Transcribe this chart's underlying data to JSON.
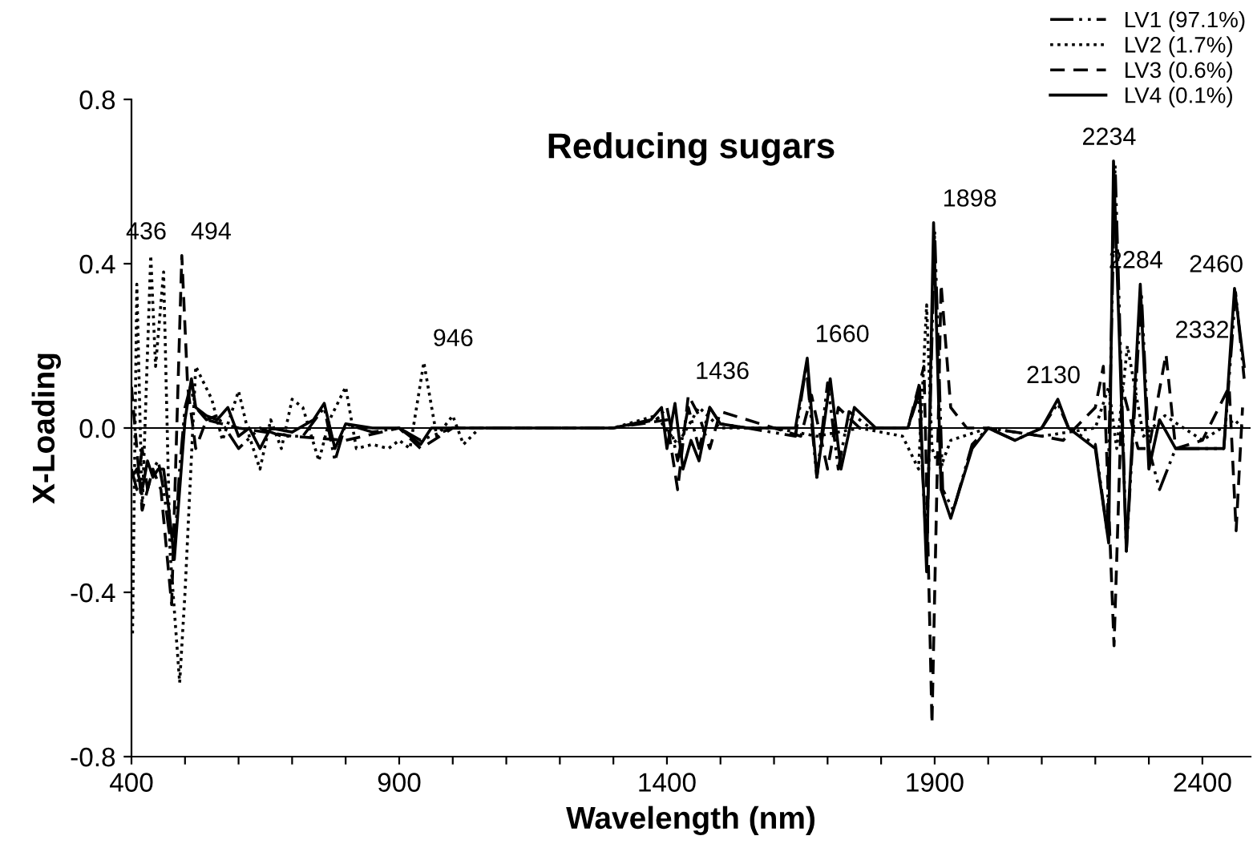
{
  "chart_data": {
    "type": "line",
    "title": "Reducing sugars",
    "xlabel": "Wavelength (nm)",
    "ylabel": "X-Loading",
    "xlim": [
      400,
      2490
    ],
    "ylim": [
      -0.8,
      0.8
    ],
    "xticks": [
      400,
      {
        "value": 500,
        "label": null
      },
      {
        "value": 600,
        "label": null
      },
      {
        "value": 700,
        "label": null
      },
      {
        "value": 800,
        "label": null
      },
      900,
      {
        "value": 1000,
        "label": null
      },
      {
        "value": 1100,
        "label": null
      },
      {
        "value": 1200,
        "label": null
      },
      {
        "value": 1300,
        "label": null
      },
      1400,
      {
        "value": 1500,
        "label": null
      },
      {
        "value": 1600,
        "label": null
      },
      {
        "value": 1700,
        "label": null
      },
      {
        "value": 1800,
        "label": null
      },
      1900,
      {
        "value": 2000,
        "label": null
      },
      {
        "value": 2100,
        "label": null
      },
      {
        "value": 2200,
        "label": null
      },
      {
        "value": 2300,
        "label": null
      },
      2400
    ],
    "yticks": [
      {
        "value": -0.8,
        "label": "-0.8"
      },
      {
        "value": -0.4,
        "label": "-0.4"
      },
      {
        "value": 0,
        "label": "0.0"
      },
      {
        "value": 0.4,
        "label": "0.4"
      },
      {
        "value": 0.8,
        "label": "0.8"
      }
    ],
    "grid": false,
    "legend": "top right",
    "marker": "none",
    "ref_lines": [
      {
        "axis": "y",
        "value": 0,
        "color": "#000000"
      }
    ],
    "series": [
      {
        "name": "LV1 (97.1%)",
        "color": "#000000",
        "line_style": "dashdot",
        "x": [
          400,
          410,
          420,
          430,
          440,
          450,
          460,
          470,
          480,
          490,
          500,
          510,
          520,
          540,
          560,
          600,
          640,
          680,
          720,
          760,
          780,
          800,
          850,
          900,
          940,
          1000,
          1100,
          1200,
          1300,
          1380,
          1400,
          1420,
          1440,
          1460,
          1480,
          1500,
          1550,
          1640,
          1660,
          1680,
          1700,
          1720,
          1740,
          1780,
          1850,
          1870,
          1885,
          1900,
          1915,
          1935,
          1970,
          2000,
          2050,
          2100,
          2130,
          2150,
          2200,
          2222,
          2237,
          2258,
          2286,
          2300,
          2320,
          2350,
          2400,
          2440,
          2462,
          2478
        ],
        "values": [
          -0.1,
          -0.15,
          -0.05,
          -0.15,
          -0.1,
          -0.08,
          -0.15,
          -0.25,
          -0.3,
          -0.1,
          0.05,
          0.1,
          0.05,
          0.02,
          0.03,
          -0.05,
          0.0,
          -0.02,
          -0.02,
          0.05,
          -0.08,
          0.01,
          -0.01,
          0.0,
          -0.03,
          0.0,
          0.0,
          0.0,
          0.0,
          0.02,
          0.05,
          -0.08,
          0.05,
          -0.05,
          0.05,
          0.01,
          0.0,
          -0.02,
          0.15,
          -0.12,
          0.11,
          -0.1,
          0.04,
          0.0,
          0.0,
          0.08,
          -0.3,
          0.48,
          -0.15,
          -0.2,
          -0.04,
          0.0,
          -0.03,
          0.0,
          0.06,
          0.0,
          -0.04,
          -0.25,
          0.64,
          -0.3,
          0.33,
          -0.05,
          -0.15,
          -0.05,
          -0.05,
          -0.05,
          0.33,
          0.12
        ]
      },
      {
        "name": "LV2 (1.7%)",
        "color": "#000000",
        "line_style": "dotted",
        "x": [
          402,
          410,
          420,
          436,
          445,
          460,
          472,
          490,
          500,
          520,
          550,
          570,
          600,
          620,
          640,
          660,
          680,
          700,
          720,
          750,
          770,
          800,
          820,
          850,
          880,
          900,
          920,
          946,
          970,
          1000,
          1020,
          1050,
          1100,
          1200,
          1300,
          1380,
          1420,
          1460,
          1500,
          1600,
          1680,
          1760,
          1840,
          1870,
          1885,
          1895,
          1910,
          1930,
          2000,
          2100,
          2200,
          2225,
          2240,
          2260,
          2290,
          2330,
          2400,
          2460,
          2475
        ],
        "values": [
          -0.5,
          0.35,
          -0.2,
          0.42,
          0.15,
          0.38,
          -0.3,
          -0.62,
          -0.4,
          0.15,
          0.07,
          -0.03,
          0.09,
          -0.02,
          -0.1,
          0.02,
          -0.05,
          0.07,
          0.05,
          -0.08,
          0.02,
          0.1,
          -0.05,
          -0.04,
          -0.05,
          -0.03,
          -0.05,
          0.16,
          -0.02,
          0.03,
          -0.04,
          0.0,
          0.0,
          0.0,
          0.0,
          0.03,
          -0.04,
          0.05,
          0.0,
          0.0,
          -0.02,
          0.0,
          -0.02,
          -0.1,
          0.3,
          -0.05,
          -0.1,
          -0.03,
          0.0,
          -0.02,
          0.0,
          0.1,
          -0.05,
          0.2,
          -0.02,
          0.03,
          -0.03,
          0.02,
          0.0
        ]
      },
      {
        "name": "LV3 (0.6%)",
        "color": "#000000",
        "line_style": "dashed",
        "x": [
          400,
          420,
          440,
          455,
          475,
          494,
          505,
          520,
          540,
          600,
          700,
          800,
          900,
          940,
          1000,
          1100,
          1300,
          1400,
          1420,
          1440,
          1460,
          1480,
          1500,
          1600,
          1650,
          1670,
          1700,
          1720,
          1760,
          1850,
          1880,
          1895,
          1912,
          1930,
          1960,
          2000,
          2100,
          2140,
          2200,
          2215,
          2235,
          2250,
          2280,
          2300,
          2332,
          2350,
          2400,
          2450,
          2463,
          2475
        ],
        "values": [
          0.1,
          -0.2,
          -0.1,
          -0.15,
          -0.43,
          0.42,
          0.1,
          -0.05,
          0.02,
          0.0,
          -0.02,
          -0.03,
          0.0,
          -0.05,
          0.0,
          0.0,
          0.0,
          0.02,
          -0.15,
          0.08,
          0.03,
          -0.05,
          0.04,
          0.0,
          -0.02,
          0.08,
          -0.1,
          0.05,
          0.0,
          0.0,
          0.15,
          -0.72,
          0.35,
          0.05,
          0.0,
          0.0,
          -0.02,
          -0.03,
          0.05,
          0.15,
          -0.53,
          0.1,
          -0.05,
          -0.05,
          0.18,
          -0.05,
          -0.03,
          0.1,
          -0.25,
          0.05
        ]
      },
      {
        "name": "LV4 (0.1%)",
        "color": "#000000",
        "line_style": "solid",
        "x": [
          400,
          410,
          420,
          430,
          440,
          450,
          460,
          470,
          480,
          490,
          500,
          512,
          520,
          540,
          560,
          580,
          600,
          620,
          640,
          660,
          700,
          740,
          760,
          780,
          800,
          850,
          900,
          940,
          960,
          1000,
          1100,
          1200,
          1300,
          1370,
          1390,
          1400,
          1415,
          1430,
          1445,
          1460,
          1480,
          1500,
          1550,
          1640,
          1662,
          1680,
          1705,
          1725,
          1750,
          1790,
          1850,
          1872,
          1885,
          1898,
          1912,
          1930,
          1970,
          2000,
          2050,
          2100,
          2130,
          2150,
          2200,
          2225,
          2234,
          2258,
          2284,
          2300,
          2320,
          2350,
          2400,
          2440,
          2460,
          2478
        ],
        "values": [
          -0.12,
          -0.1,
          -0.15,
          -0.08,
          -0.12,
          -0.1,
          -0.1,
          -0.2,
          -0.32,
          -0.15,
          0.02,
          0.12,
          0.05,
          0.03,
          0.02,
          0.05,
          -0.02,
          0.0,
          -0.05,
          0.0,
          -0.01,
          0.02,
          0.06,
          -0.05,
          0.01,
          0.0,
          0.0,
          -0.04,
          0.0,
          0.0,
          0.0,
          0.0,
          0.0,
          0.02,
          0.05,
          -0.05,
          0.06,
          -0.1,
          -0.03,
          -0.08,
          0.05,
          0.01,
          0.0,
          0.0,
          0.17,
          -0.12,
          0.12,
          -0.1,
          0.05,
          0.0,
          0.0,
          0.1,
          -0.35,
          0.5,
          -0.15,
          -0.22,
          -0.05,
          0.0,
          -0.03,
          0.0,
          0.07,
          0.0,
          -0.05,
          -0.28,
          0.65,
          -0.3,
          0.35,
          -0.1,
          0.02,
          -0.05,
          -0.05,
          -0.05,
          0.34,
          0.15
        ]
      }
    ],
    "annotations": [
      {
        "text": "436",
        "x": 436,
        "y": 0.42
      },
      {
        "text": "494",
        "x": 494,
        "y": 0.42
      },
      {
        "text": "946",
        "x": 946,
        "y": 0.16
      },
      {
        "text": "1436",
        "x": 1436,
        "y": 0.08
      },
      {
        "text": "1660",
        "x": 1660,
        "y": 0.17
      },
      {
        "text": "1898",
        "x": 1898,
        "y": 0.5
      },
      {
        "text": "2130",
        "x": 2130,
        "y": 0.07
      },
      {
        "text": "2234",
        "x": 2234,
        "y": 0.65
      },
      {
        "text": "2284",
        "x": 2284,
        "y": 0.35
      },
      {
        "text": "2332",
        "x": 2332,
        "y": 0.18
      },
      {
        "text": "2460",
        "x": 2460,
        "y": 0.34
      }
    ]
  }
}
